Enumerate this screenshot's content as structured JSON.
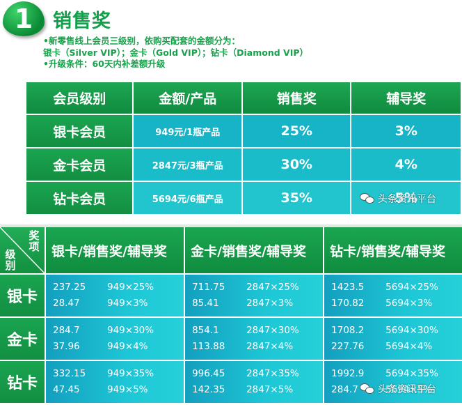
{
  "top": {
    "badge_number": "1",
    "title": "销售奖",
    "intro_lines": [
      "•新零售线上会员三级别，依购买配套的金额分为：",
      "银卡（Silver VIP）；金卡（Gold VIP）；钻卡（Diamond VIP）",
      "•升级条件：60天内补差额升级"
    ],
    "table": {
      "headers": [
        "会员级别",
        "金额/产品",
        "销售奖",
        "辅导奖"
      ],
      "rows": [
        {
          "level": "银卡会员",
          "amount": "949元/1瓶产品",
          "sales": "25%",
          "coach": "3%"
        },
        {
          "level": "金卡会员",
          "amount": "2847元/3瓶产品",
          "sales": "30%",
          "coach": "4%"
        },
        {
          "level": "钻卡会员",
          "amount": "5694元/6瓶产品",
          "sales": "35%",
          "coach": "5%"
        }
      ]
    },
    "watermark": "头条资讯平台"
  },
  "bottom": {
    "corner_top": "奖项",
    "corner_bottom": "级别",
    "col_headers": [
      "银卡/销售奖/辅导奖",
      "金卡/销售奖/辅导奖",
      "钻卡/销售奖/辅导奖"
    ],
    "rows": [
      {
        "label": "银卡",
        "cells": [
          [
            {
              "value": "237.25",
              "formula": "949×25%"
            },
            {
              "value": "28.47",
              "formula": "949×3%"
            }
          ],
          [
            {
              "value": "711.75",
              "formula": "2847×25%"
            },
            {
              "value": "85.41",
              "formula": "2847×3%"
            }
          ],
          [
            {
              "value": "1423.5",
              "formula": "5694×25%"
            },
            {
              "value": "170.82",
              "formula": "5694×3%"
            }
          ]
        ]
      },
      {
        "label": "金卡",
        "cells": [
          [
            {
              "value": "284.7",
              "formula": "949×30%"
            },
            {
              "value": "37.96",
              "formula": "949×4%"
            }
          ],
          [
            {
              "value": "854.1",
              "formula": "2847×30%"
            },
            {
              "value": "113.88",
              "formula": "2847×4%"
            }
          ],
          [
            {
              "value": "1708.2",
              "formula": "5694×30%"
            },
            {
              "value": "227.76",
              "formula": "5694×4%"
            }
          ]
        ]
      },
      {
        "label": "钻卡",
        "cells": [
          [
            {
              "value": "332.15",
              "formula": "949×35%"
            },
            {
              "value": "47.45",
              "formula": "949×5%"
            }
          ],
          [
            {
              "value": "996.45",
              "formula": "2847×35%"
            },
            {
              "value": "142.35",
              "formula": "2847×5%"
            }
          ],
          [
            {
              "value": "1992.9",
              "formula": "5694×35%"
            },
            {
              "value": "284.7",
              "formula": "5694×5%"
            }
          ]
        ]
      }
    ],
    "watermark": "头条资讯平台"
  },
  "colors": {
    "green_header": "#13a04a",
    "cyan_cell": "#1bbcca"
  }
}
